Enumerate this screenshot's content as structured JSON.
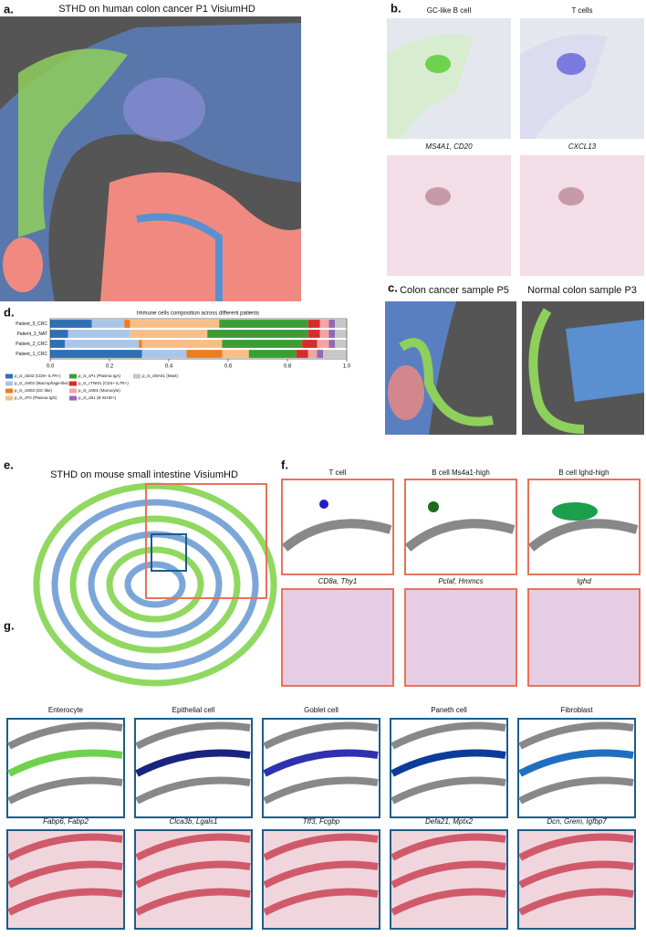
{
  "panels": {
    "a": {
      "label": "a.",
      "title": "STHD on human colon cancer P1 VisiumHD"
    },
    "b": {
      "label": "b.",
      "images": [
        "GC-like B cell",
        "T cells",
        "MS4A1, CD20",
        "CXCL13"
      ]
    },
    "c": {
      "label": "c.",
      "images": [
        "Colon cancer sample P5",
        "Normal colon sample P3"
      ]
    },
    "e": {
      "label": "e.",
      "title": "STHD on mouse small intestine VisiumHD"
    },
    "f": {
      "label": "f.",
      "images": [
        "T cell",
        "B cell Ms4a1-high",
        "B cell Ighd-high",
        "CD8a, Thy1",
        "Pclaf, Hmmcs",
        "Ighd"
      ]
    },
    "g": {
      "label": "g.",
      "images": [
        "Enterocyte",
        "Epithelial cell",
        "Goblet cell",
        "Paneth cell",
        "Fibroblast",
        "Fabp6, Fabp2",
        "Clca3b, Lgals1",
        "Tff3, Fcgbp",
        "Defa21, Mptx2",
        "Dcn, Grem, Igfbp7"
      ]
    }
  },
  "chart_data": {
    "type": "hbar-stacked",
    "label": "d.",
    "title": "Immune cells composition across different patients",
    "categories": [
      "Patient_5_CRC",
      "Patient_3_NAT",
      "Patient_2_CRC",
      "Patient_1_CRC"
    ],
    "xlim": [
      0,
      1
    ],
    "xticks": [
      {
        "value": 0,
        "label": "0.0"
      },
      0.2,
      0.4,
      0.6,
      0.8,
      {
        "value": 1,
        "label": "1.0"
      }
    ],
    "series": [
      {
        "name": "p_ct_cB32 (CD8+ IL7R+)",
        "color": "#2f6fb5",
        "values": [
          0.14,
          0.06,
          0.05,
          0.31
        ]
      },
      {
        "name": "p_ct_cM02 (Macrophage-like)",
        "color": "#a9c6e8",
        "values": [
          0.11,
          0.21,
          0.25,
          0.15
        ]
      },
      {
        "name": "p_ct_cM03 (DC-like)",
        "color": "#ee7d1e",
        "values": [
          0.02,
          0,
          0.01,
          0.12
        ]
      },
      {
        "name": "p_ct_cP2 (Plasma IgG)",
        "color": "#f7bf85",
        "values": [
          0.3,
          0.26,
          0.27,
          0.09
        ]
      },
      {
        "name": "p_ct_cP1 (Plasma IgA)",
        "color": "#3a9e35",
        "values": [
          0.3,
          0.34,
          0.27,
          0.16
        ]
      },
      {
        "name": "p_ct_cTNI01 (CD4+ IL7R+)",
        "color": "#d62b2b",
        "values": [
          0.04,
          0.04,
          0.05,
          0.04
        ]
      },
      {
        "name": "p_ct_cM01 (Monocyte)",
        "color": "#f5a3a3",
        "values": [
          0.03,
          0.03,
          0.04,
          0.03
        ]
      },
      {
        "name": "p_ct_cB1 (B IGHD+)",
        "color": "#9368b8",
        "values": [
          0.02,
          0.02,
          0.02,
          0.02
        ]
      },
      {
        "name": "p_ct_cMA01 (Mast)",
        "color": "#c7c7c7",
        "values": [
          0.04,
          0.04,
          0.04,
          0.08
        ]
      }
    ]
  }
}
